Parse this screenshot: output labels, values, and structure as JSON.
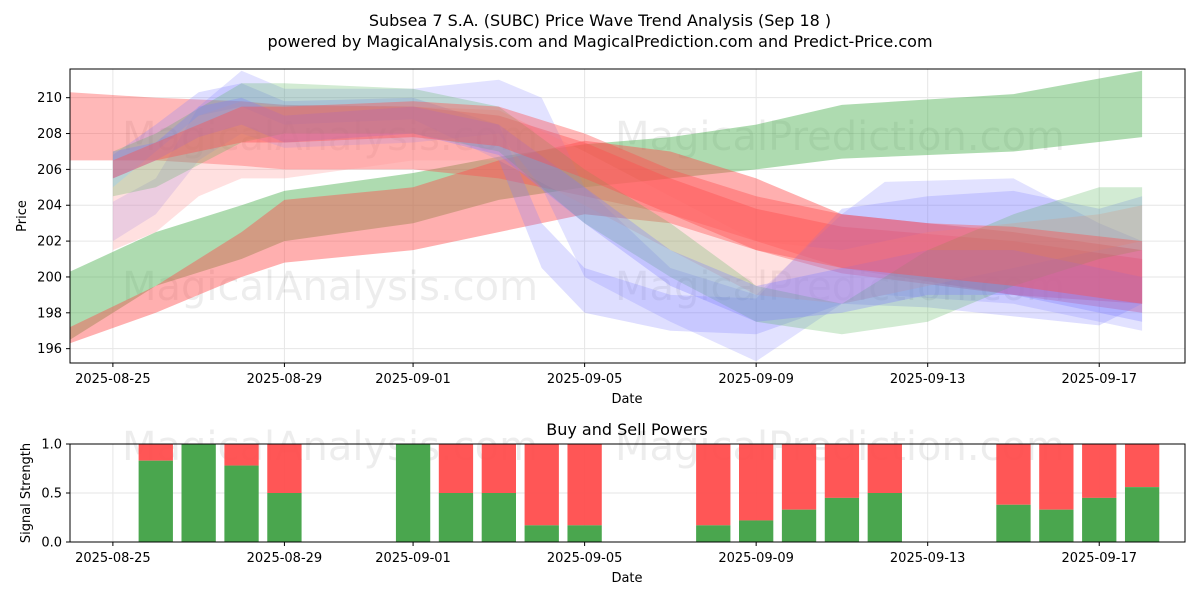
{
  "title": "Subsea 7 S.A. (SUBC) Price Wave Trend Analysis (Sep 18 )",
  "subtitle": "powered by MagicalAnalysis.com and MagicalPrediction.com and Predict-Price.com",
  "watermarks": [
    "MagicalAnalysis.com",
    "MagicalPrediction.com"
  ],
  "colors": {
    "green": "#4caf50",
    "red": "#ff4d4d",
    "blue": "#7a7aff",
    "pink": "#ff9999"
  },
  "chart_data": [
    {
      "type": "area",
      "title": "",
      "xlabel": "Date",
      "ylabel": "Price",
      "xlim": [
        "2025-08-24",
        "2025-09-19"
      ],
      "ylim": [
        195.2,
        211.6
      ],
      "x_ticks": [
        "2025-08-25",
        "2025-08-29",
        "2025-09-01",
        "2025-09-05",
        "2025-09-09",
        "2025-09-13",
        "2025-09-17"
      ],
      "y_ticks": [
        196,
        198,
        200,
        202,
        204,
        206,
        208,
        210
      ],
      "grid": true,
      "bands": [
        {
          "color": "green",
          "opacity": 0.45,
          "x": [
            "2025-08-24",
            "2025-08-26",
            "2025-08-28",
            "2025-08-29",
            "2025-09-01",
            "2025-09-03",
            "2025-09-05",
            "2025-09-07",
            "2025-09-09",
            "2025-09-11",
            "2025-09-15",
            "2025-09-18"
          ],
          "upper": [
            200.3,
            202.5,
            204.0,
            204.8,
            205.8,
            206.7,
            207.4,
            207.8,
            208.5,
            209.6,
            210.2,
            211.5
          ],
          "lower": [
            196.5,
            199.5,
            201.0,
            202.0,
            203.0,
            204.3,
            205.0,
            205.5,
            206.0,
            206.6,
            207.0,
            207.8
          ]
        },
        {
          "color": "red",
          "opacity": 0.45,
          "x": [
            "2025-08-24",
            "2025-08-26",
            "2025-08-28",
            "2025-08-29",
            "2025-09-01",
            "2025-09-03",
            "2025-09-05",
            "2025-09-07",
            "2025-09-09",
            "2025-09-11",
            "2025-09-15",
            "2025-09-18"
          ],
          "upper": [
            197.2,
            199.5,
            202.5,
            204.3,
            205.0,
            206.5,
            207.6,
            207.0,
            205.5,
            203.5,
            202.5,
            201.5
          ],
          "lower": [
            196.3,
            198.0,
            200.0,
            200.8,
            201.5,
            202.5,
            203.5,
            203.0,
            201.5,
            200.2,
            199.0,
            198.5
          ]
        },
        {
          "color": "red",
          "opacity": 0.4,
          "x": [
            "2025-08-24",
            "2025-08-26",
            "2025-08-28",
            "2025-08-29",
            "2025-09-01",
            "2025-09-03",
            "2025-09-05",
            "2025-09-07",
            "2025-09-09",
            "2025-09-11",
            "2025-09-15",
            "2025-09-18"
          ],
          "upper": [
            210.3,
            210.0,
            209.8,
            209.6,
            209.5,
            209.0,
            207.5,
            205.5,
            203.8,
            202.8,
            202.0,
            201.0
          ],
          "lower": [
            206.5,
            206.5,
            206.2,
            206.0,
            206.0,
            205.5,
            204.5,
            203.5,
            202.0,
            200.5,
            199.0,
            198.0
          ]
        },
        {
          "color": "blue",
          "opacity": 0.25,
          "x": [
            "2025-08-25",
            "2025-08-26",
            "2025-08-27",
            "2025-08-28",
            "2025-08-29",
            "2025-09-01",
            "2025-09-03",
            "2025-09-04",
            "2025-09-05",
            "2025-09-07",
            "2025-09-09",
            "2025-09-11",
            "2025-09-13",
            "2025-09-15",
            "2025-09-17",
            "2025-09-18"
          ],
          "upper": [
            206.8,
            208.5,
            210.3,
            210.8,
            209.8,
            210.0,
            208.5,
            203.0,
            200.5,
            199.0,
            198.8,
            203.8,
            204.5,
            204.8,
            203.8,
            204.5
          ],
          "lower": [
            205.0,
            207.0,
            209.0,
            209.5,
            208.5,
            208.8,
            206.5,
            200.5,
            198.0,
            197.0,
            196.8,
            198.5,
            198.3,
            197.8,
            197.3,
            198.5
          ]
        },
        {
          "color": "blue",
          "opacity": 0.22,
          "x": [
            "2025-08-25",
            "2025-08-26",
            "2025-08-27",
            "2025-08-28",
            "2025-08-29",
            "2025-09-01",
            "2025-09-03",
            "2025-09-04",
            "2025-09-05",
            "2025-09-07",
            "2025-09-09",
            "2025-09-11",
            "2025-09-12",
            "2025-09-15",
            "2025-09-17",
            "2025-09-18"
          ],
          "upper": [
            204.2,
            205.5,
            209.5,
            211.5,
            210.5,
            210.5,
            211.0,
            210.0,
            205.0,
            200.5,
            199.0,
            203.5,
            205.3,
            205.5,
            203.0,
            202.0
          ],
          "lower": [
            202.0,
            203.5,
            206.5,
            208.0,
            207.2,
            207.5,
            208.0,
            205.0,
            200.0,
            197.5,
            195.3,
            198.5,
            199.0,
            198.5,
            197.5,
            197.0
          ]
        },
        {
          "color": "pink",
          "opacity": 0.3,
          "x": [
            "2025-08-25",
            "2025-08-26",
            "2025-08-27",
            "2025-08-28",
            "2025-08-29",
            "2025-09-01",
            "2025-09-03",
            "2025-09-05",
            "2025-09-07",
            "2025-09-09",
            "2025-09-11",
            "2025-09-13",
            "2025-09-15",
            "2025-09-17",
            "2025-09-18"
          ],
          "upper": [
            205.0,
            207.0,
            209.0,
            209.8,
            209.5,
            209.5,
            209.3,
            207.0,
            204.5,
            202.0,
            201.5,
            202.5,
            203.0,
            203.5,
            204.0
          ],
          "lower": [
            201.5,
            202.5,
            204.5,
            205.5,
            205.5,
            206.5,
            206.5,
            204.0,
            201.5,
            199.0,
            198.5,
            199.5,
            200.5,
            201.5,
            202.0
          ]
        },
        {
          "color": "green",
          "opacity": 0.25,
          "x": [
            "2025-08-25",
            "2025-08-26",
            "2025-08-28",
            "2025-08-29",
            "2025-09-01",
            "2025-09-03",
            "2025-09-05",
            "2025-09-07",
            "2025-09-09",
            "2025-09-11",
            "2025-09-13",
            "2025-09-15",
            "2025-09-17",
            "2025-09-18"
          ],
          "upper": [
            207.0,
            208.0,
            210.8,
            210.8,
            210.5,
            209.5,
            206.0,
            203.0,
            199.5,
            198.5,
            201.5,
            203.5,
            205.0,
            205.0
          ],
          "lower": [
            204.5,
            205.0,
            207.5,
            208.0,
            208.0,
            207.0,
            203.0,
            200.0,
            197.5,
            196.8,
            197.5,
            199.5,
            201.0,
            201.5
          ]
        },
        {
          "color": "blue",
          "opacity": 0.3,
          "x": [
            "2025-08-25",
            "2025-08-26",
            "2025-08-27",
            "2025-08-28",
            "2025-08-29",
            "2025-09-01",
            "2025-09-03",
            "2025-09-05",
            "2025-09-07",
            "2025-09-09",
            "2025-09-11",
            "2025-09-13",
            "2025-09-15",
            "2025-09-17",
            "2025-09-18"
          ],
          "upper": [
            207.0,
            207.5,
            209.5,
            210.0,
            209.0,
            209.5,
            208.5,
            205.0,
            201.5,
            199.5,
            200.5,
            201.5,
            201.5,
            200.5,
            200.0
          ],
          "lower": [
            205.5,
            206.5,
            207.8,
            208.5,
            207.5,
            208.0,
            206.8,
            203.0,
            199.5,
            197.5,
            198.0,
            199.0,
            199.0,
            198.0,
            197.5
          ]
        },
        {
          "color": "red",
          "opacity": 0.4,
          "x": [
            "2025-08-25",
            "2025-08-26",
            "2025-08-28",
            "2025-08-29",
            "2025-09-01",
            "2025-09-03",
            "2025-09-05",
            "2025-09-07",
            "2025-09-09",
            "2025-09-11",
            "2025-09-13",
            "2025-09-15",
            "2025-09-18"
          ],
          "upper": [
            206.5,
            207.5,
            209.5,
            209.5,
            209.8,
            209.5,
            208.0,
            206.0,
            204.5,
            203.5,
            203.0,
            202.8,
            202.0
          ],
          "lower": [
            205.5,
            206.5,
            207.5,
            207.5,
            207.8,
            207.3,
            205.5,
            203.5,
            201.5,
            200.5,
            200.0,
            199.5,
            198.5
          ]
        }
      ],
      "watermark_rows": 2
    },
    {
      "type": "bar",
      "title": "Buy and Sell Powers",
      "xlabel": "Date",
      "ylabel": "Signal Strength",
      "xlim": [
        "2025-08-24",
        "2025-09-19"
      ],
      "ylim": [
        0,
        1
      ],
      "x_ticks": [
        "2025-08-25",
        "2025-08-29",
        "2025-09-01",
        "2025-09-05",
        "2025-09-09",
        "2025-09-13",
        "2025-09-17"
      ],
      "y_ticks": [
        "0.0",
        "0.5",
        "1.0"
      ],
      "series": [
        {
          "name": "buy",
          "color": "green"
        },
        {
          "name": "sell",
          "color": "red"
        }
      ],
      "x": [
        "2025-08-26",
        "2025-08-27",
        "2025-08-28",
        "2025-08-29",
        "2025-09-01",
        "2025-09-02",
        "2025-09-03",
        "2025-09-04",
        "2025-09-05",
        "2025-09-08",
        "2025-09-09",
        "2025-09-10",
        "2025-09-11",
        "2025-09-12",
        "2025-09-15",
        "2025-09-16",
        "2025-09-17",
        "2025-09-18"
      ],
      "buy": [
        0.83,
        1.0,
        0.78,
        0.5,
        1.0,
        0.5,
        0.5,
        0.17,
        0.17,
        0.17,
        0.22,
        0.33,
        0.45,
        0.5,
        0.38,
        0.33,
        0.45,
        0.56
      ]
    }
  ]
}
